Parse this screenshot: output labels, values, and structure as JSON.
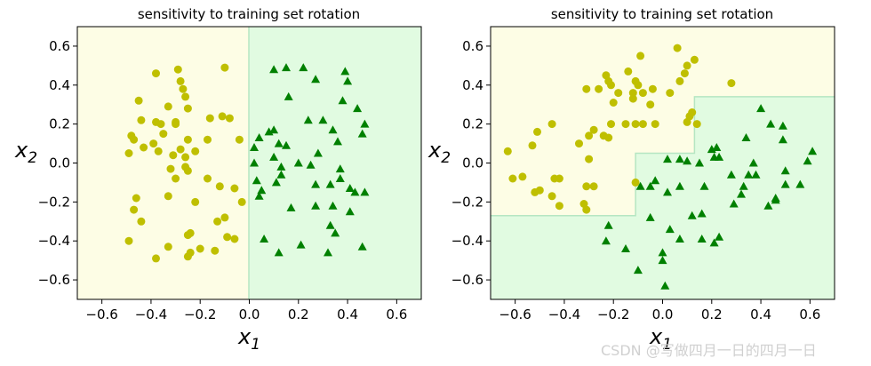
{
  "chart_data": [
    {
      "type": "scatter",
      "title": "sensitivity to training set rotation",
      "xlabel": "x",
      "xlabel_sub": "1",
      "ylabel": "x",
      "ylabel_sub": "2",
      "xlim": [
        -0.7,
        0.7
      ],
      "ylim": [
        -0.7,
        0.7
      ],
      "xticks": [
        -0.6,
        -0.4,
        -0.2,
        0.0,
        0.2,
        0.4,
        0.6
      ],
      "xtick_labels": [
        "−0.6",
        "−0.4",
        "−0.2",
        "0.0",
        "0.2",
        "0.4",
        "0.6"
      ],
      "yticks": [
        -0.6,
        -0.4,
        -0.2,
        0.0,
        0.2,
        0.4,
        0.6
      ],
      "ytick_labels": [
        "−0.6",
        "−0.4",
        "−0.2",
        "0.0",
        "0.2",
        "0.4",
        "0.6"
      ],
      "region_colors": {
        "class0": "#fdfde5",
        "class1": "#e1fbe1",
        "boundary": "#b5e6c2"
      },
      "decision_boundary": [
        [
          0.0,
          -0.7
        ],
        [
          0.0,
          0.7
        ]
      ],
      "series": [
        {
          "name": "class 0",
          "marker": "circle",
          "color": "#bfbf00",
          "points": [
            [
              -0.48,
              0.14
            ],
            [
              -0.49,
              0.05
            ],
            [
              -0.47,
              0.12
            ],
            [
              -0.45,
              0.32
            ],
            [
              -0.44,
              0.22
            ],
            [
              -0.43,
              0.08
            ],
            [
              -0.38,
              0.46
            ],
            [
              -0.38,
              0.21
            ],
            [
              -0.36,
              0.2
            ],
            [
              -0.35,
              0.15
            ],
            [
              -0.37,
              0.06
            ],
            [
              -0.39,
              0.1
            ],
            [
              -0.33,
              0.29
            ],
            [
              -0.3,
              0.21
            ],
            [
              -0.29,
              0.48
            ],
            [
              -0.28,
              0.42
            ],
            [
              -0.27,
              0.38
            ],
            [
              -0.26,
              0.34
            ],
            [
              -0.25,
              0.28
            ],
            [
              -0.25,
              0.12
            ],
            [
              -0.26,
              -0.02
            ],
            [
              -0.25,
              -0.04
            ],
            [
              -0.26,
              0.03
            ],
            [
              -0.28,
              0.07
            ],
            [
              -0.3,
              0.2
            ],
            [
              -0.32,
              -0.03
            ],
            [
              -0.31,
              0.04
            ],
            [
              -0.33,
              -0.17
            ],
            [
              -0.3,
              -0.08
            ],
            [
              -0.22,
              0.06
            ],
            [
              -0.17,
              0.12
            ],
            [
              -0.16,
              0.23
            ],
            [
              -0.17,
              -0.08
            ],
            [
              -0.11,
              0.24
            ],
            [
              -0.08,
              0.23
            ],
            [
              -0.1,
              0.49
            ],
            [
              -0.12,
              -0.12
            ],
            [
              -0.04,
              0.12
            ],
            [
              -0.06,
              -0.13
            ],
            [
              -0.03,
              -0.2
            ],
            [
              -0.22,
              -0.2
            ],
            [
              -0.24,
              -0.36
            ],
            [
              -0.25,
              -0.37
            ],
            [
              -0.24,
              -0.46
            ],
            [
              -0.25,
              -0.48
            ],
            [
              -0.2,
              -0.44
            ],
            [
              -0.13,
              -0.3
            ],
            [
              -0.1,
              -0.28
            ],
            [
              -0.09,
              -0.38
            ],
            [
              -0.06,
              -0.39
            ],
            [
              -0.14,
              -0.45
            ],
            [
              -0.33,
              -0.43
            ],
            [
              -0.38,
              -0.49
            ],
            [
              -0.46,
              -0.18
            ],
            [
              -0.47,
              -0.24
            ],
            [
              -0.44,
              -0.3
            ],
            [
              -0.49,
              -0.4
            ]
          ]
        },
        {
          "name": "class 1",
          "marker": "triangle",
          "color": "#008000",
          "points": [
            [
              0.1,
              0.48
            ],
            [
              0.15,
              0.49
            ],
            [
              0.22,
              0.49
            ],
            [
              0.27,
              0.43
            ],
            [
              0.39,
              0.47
            ],
            [
              0.4,
              0.42
            ],
            [
              0.16,
              0.34
            ],
            [
              0.38,
              0.32
            ],
            [
              0.44,
              0.28
            ],
            [
              0.02,
              0.08
            ],
            [
              0.04,
              0.13
            ],
            [
              0.08,
              0.16
            ],
            [
              0.1,
              0.17
            ],
            [
              0.12,
              0.1
            ],
            [
              0.15,
              0.09
            ],
            [
              0.24,
              0.22
            ],
            [
              0.3,
              0.22
            ],
            [
              0.34,
              0.17
            ],
            [
              0.36,
              0.11
            ],
            [
              0.47,
              0.2
            ],
            [
              0.46,
              0.15
            ],
            [
              0.02,
              0.0
            ],
            [
              0.1,
              0.03
            ],
            [
              0.13,
              -0.02
            ],
            [
              0.2,
              0.0
            ],
            [
              0.25,
              -0.01
            ],
            [
              0.28,
              0.05
            ],
            [
              0.37,
              -0.03
            ],
            [
              0.03,
              -0.09
            ],
            [
              0.05,
              -0.14
            ],
            [
              0.11,
              -0.1
            ],
            [
              0.13,
              -0.06
            ],
            [
              0.17,
              -0.23
            ],
            [
              0.27,
              -0.11
            ],
            [
              0.33,
              -0.11
            ],
            [
              0.37,
              -0.08
            ],
            [
              0.41,
              -0.13
            ],
            [
              0.43,
              -0.15
            ],
            [
              0.47,
              -0.15
            ],
            [
              0.04,
              -0.17
            ],
            [
              0.27,
              -0.22
            ],
            [
              0.34,
              -0.22
            ],
            [
              0.41,
              -0.25
            ],
            [
              0.06,
              -0.39
            ],
            [
              0.21,
              -0.42
            ],
            [
              0.33,
              -0.32
            ],
            [
              0.35,
              -0.36
            ],
            [
              0.12,
              -0.46
            ],
            [
              0.32,
              -0.46
            ],
            [
              0.46,
              -0.43
            ]
          ]
        }
      ]
    },
    {
      "type": "scatter",
      "title": "sensitivity to training set rotation",
      "xlabel": "x",
      "xlabel_sub": "1",
      "ylabel": "x",
      "ylabel_sub": "2",
      "xlim": [
        -0.7,
        0.7
      ],
      "ylim": [
        -0.7,
        0.7
      ],
      "xticks": [
        -0.6,
        -0.4,
        -0.2,
        0.0,
        0.2,
        0.4,
        0.6
      ],
      "xtick_labels": [
        "−0.6",
        "−0.4",
        "−0.2",
        "0.0",
        "0.2",
        "0.4",
        "0.6"
      ],
      "yticks": [
        -0.6,
        -0.4,
        -0.2,
        0.0,
        0.2,
        0.4,
        0.6
      ],
      "ytick_labels": [
        "−0.6",
        "−0.4",
        "−0.2",
        "0.0",
        "0.2",
        "0.4",
        "0.6"
      ],
      "region_colors": {
        "class0": "#fdfde5",
        "class1": "#e1fbe1",
        "boundary": "#b5e6c2"
      },
      "decision_boundary": [
        [
          -0.7,
          -0.27
        ],
        [
          -0.11,
          -0.27
        ],
        [
          -0.11,
          0.05
        ],
        [
          0.13,
          0.05
        ],
        [
          0.13,
          0.34
        ],
        [
          0.7,
          0.34
        ]
      ],
      "series": [
        {
          "name": "class 0",
          "marker": "circle",
          "color": "#bfbf00",
          "points": [
            [
              -0.63,
              0.06
            ],
            [
              -0.61,
              -0.08
            ],
            [
              -0.57,
              -0.07
            ],
            [
              -0.53,
              0.09
            ],
            [
              -0.52,
              -0.15
            ],
            [
              -0.5,
              -0.14
            ],
            [
              -0.51,
              0.16
            ],
            [
              -0.45,
              0.2
            ],
            [
              -0.44,
              -0.08
            ],
            [
              -0.42,
              -0.08
            ],
            [
              -0.42,
              -0.22
            ],
            [
              -0.45,
              -0.17
            ],
            [
              -0.34,
              0.1
            ],
            [
              -0.3,
              0.02
            ],
            [
              -0.31,
              -0.12
            ],
            [
              -0.28,
              -0.12
            ],
            [
              -0.31,
              -0.24
            ],
            [
              -0.32,
              -0.21
            ],
            [
              -0.23,
              0.45
            ],
            [
              -0.22,
              0.42
            ],
            [
              -0.21,
              0.4
            ],
            [
              -0.31,
              0.38
            ],
            [
              -0.26,
              0.38
            ],
            [
              -0.2,
              0.31
            ],
            [
              -0.21,
              0.2
            ],
            [
              -0.18,
              0.36
            ],
            [
              -0.15,
              0.2
            ],
            [
              -0.11,
              0.2
            ],
            [
              -0.08,
              0.2
            ],
            [
              -0.14,
              0.47
            ],
            [
              -0.11,
              0.42
            ],
            [
              -0.1,
              0.4
            ],
            [
              -0.12,
              0.36
            ],
            [
              -0.09,
              0.55
            ],
            [
              -0.04,
              0.38
            ],
            [
              -0.03,
              0.2
            ],
            [
              -0.05,
              0.3
            ],
            [
              0.03,
              0.36
            ],
            [
              0.06,
              0.59
            ],
            [
              0.07,
              0.42
            ],
            [
              0.09,
              0.46
            ],
            [
              0.1,
              0.5
            ],
            [
              0.13,
              0.53
            ],
            [
              0.11,
              0.24
            ],
            [
              0.12,
              0.26
            ],
            [
              0.28,
              0.41
            ],
            [
              -0.22,
              0.13
            ],
            [
              -0.24,
              0.14
            ],
            [
              -0.12,
              0.33
            ],
            [
              0.1,
              0.21
            ],
            [
              0.14,
              0.2
            ],
            [
              -0.3,
              0.14
            ],
            [
              -0.28,
              0.17
            ],
            [
              -0.11,
              -0.1
            ],
            [
              -0.08,
              0.36
            ]
          ]
        },
        {
          "name": "class 1",
          "marker": "triangle",
          "color": "#008000",
          "points": [
            [
              -0.23,
              -0.4
            ],
            [
              -0.22,
              -0.32
            ],
            [
              -0.15,
              -0.44
            ],
            [
              -0.1,
              -0.55
            ],
            [
              -0.09,
              -0.12
            ],
            [
              -0.05,
              -0.12
            ],
            [
              -0.03,
              -0.09
            ],
            [
              -0.05,
              -0.28
            ],
            [
              0.02,
              0.02
            ],
            [
              0.07,
              0.02
            ],
            [
              0.07,
              -0.12
            ],
            [
              0.02,
              -0.15
            ],
            [
              0.03,
              -0.34
            ],
            [
              0.07,
              -0.39
            ],
            [
              0.12,
              -0.27
            ],
            [
              0.16,
              -0.26
            ],
            [
              0.16,
              -0.39
            ],
            [
              0.17,
              -0.12
            ],
            [
              0.21,
              -0.41
            ],
            [
              0.23,
              -0.38
            ],
            [
              0.0,
              -0.46
            ],
            [
              0.0,
              -0.5
            ],
            [
              0.01,
              -0.63
            ],
            [
              0.2,
              0.07
            ],
            [
              0.22,
              0.08
            ],
            [
              0.23,
              0.03
            ],
            [
              0.29,
              -0.21
            ],
            [
              0.32,
              -0.16
            ],
            [
              0.33,
              -0.12
            ],
            [
              0.34,
              0.13
            ],
            [
              0.37,
              0.0
            ],
            [
              0.38,
              -0.06
            ],
            [
              0.4,
              0.28
            ],
            [
              0.43,
              -0.22
            ],
            [
              0.44,
              0.2
            ],
            [
              0.46,
              -0.18
            ],
            [
              0.49,
              0.12
            ],
            [
              0.49,
              0.19
            ],
            [
              0.5,
              -0.11
            ],
            [
              0.56,
              -0.11
            ],
            [
              0.59,
              0.01
            ],
            [
              0.61,
              0.06
            ],
            [
              0.5,
              -0.04
            ],
            [
              0.46,
              -0.19
            ],
            [
              0.35,
              -0.06
            ],
            [
              0.28,
              -0.06
            ],
            [
              0.15,
              0.0
            ],
            [
              0.1,
              0.01
            ],
            [
              0.21,
              0.03
            ]
          ]
        }
      ]
    }
  ],
  "watermark": "CSDN @写做四月一日的四月一日"
}
